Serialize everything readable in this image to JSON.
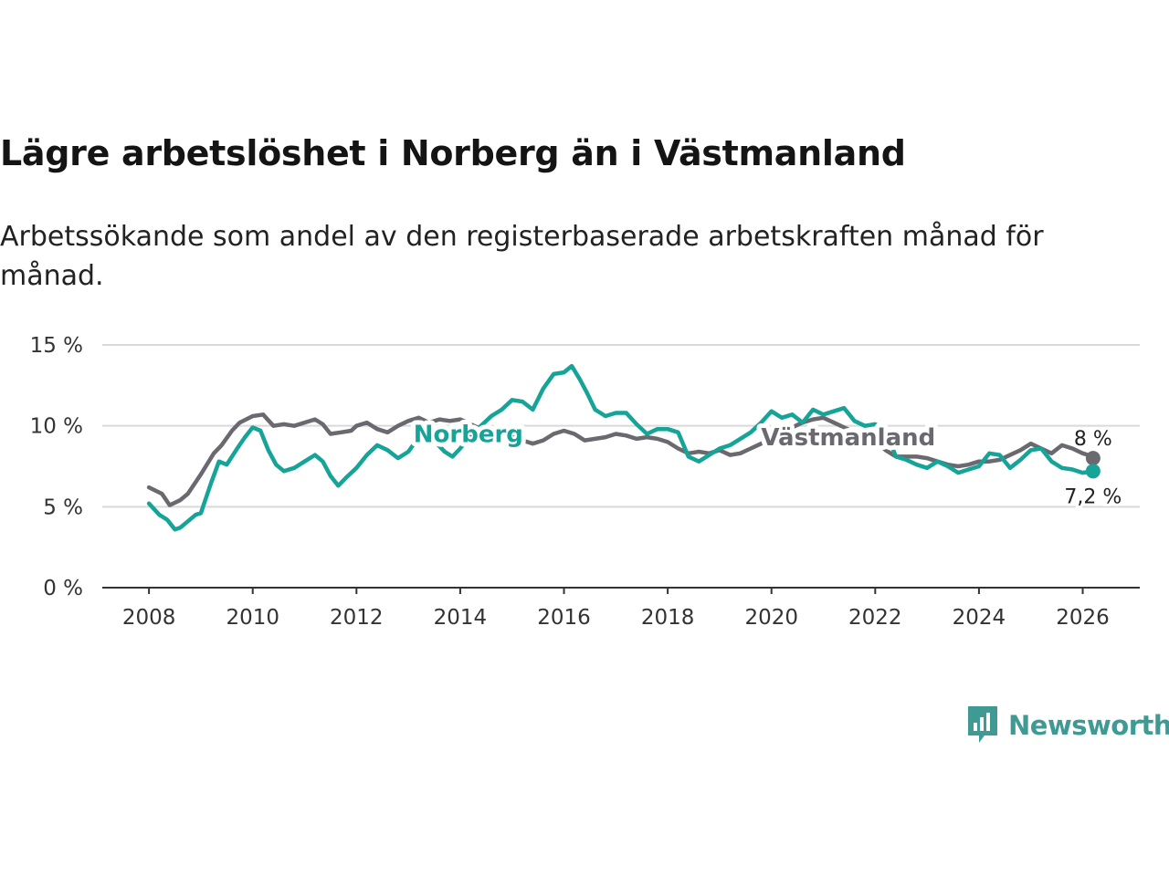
{
  "header": {
    "title": "Lägre arbetslöshet i Norberg än i Västmanland",
    "subtitle": "Arbetssökande som andel av den registerbaserade arbetskraften månad för månad."
  },
  "brand": {
    "name": "Newsworthy",
    "icon": "newsworthy-logo-icon",
    "color": "#3e9a93"
  },
  "chart_data": {
    "type": "line",
    "title": "Lägre arbetslöshet i Norberg än i Västmanland",
    "xlabel": "",
    "ylabel": "",
    "xlim": [
      2007.1,
      2027.1
    ],
    "ylim": [
      0,
      15
    ],
    "xticks": [
      2008,
      2010,
      2012,
      2014,
      2016,
      2018,
      2020,
      2022,
      2024,
      2026
    ],
    "yticks": [
      0,
      5,
      10,
      15
    ],
    "ytick_labels": [
      "0 %",
      "5 %",
      "10 %",
      "15 %"
    ],
    "grid": "horizontal",
    "series": [
      {
        "name": "Västmanland",
        "label": "Västmanland",
        "color": "#6b6970",
        "end_value": 8.0,
        "end_label": "8 %",
        "label_anchor": [
          2019.8,
          9.3
        ],
        "x": [
          2008.0,
          2008.25,
          2008.4,
          2008.6,
          2008.75,
          2009.0,
          2009.25,
          2009.4,
          2009.6,
          2009.75,
          2010.0,
          2010.2,
          2010.4,
          2010.6,
          2010.8,
          2011.0,
          2011.2,
          2011.35,
          2011.5,
          2011.7,
          2011.9,
          2012.0,
          2012.2,
          2012.4,
          2012.6,
          2012.8,
          2013.0,
          2013.2,
          2013.4,
          2013.6,
          2013.8,
          2014.0,
          2014.2,
          2014.4,
          2014.6,
          2014.8,
          2015.0,
          2015.2,
          2015.4,
          2015.6,
          2015.8,
          2016.0,
          2016.2,
          2016.4,
          2016.6,
          2016.8,
          2017.0,
          2017.2,
          2017.4,
          2017.6,
          2017.8,
          2018.0,
          2018.2,
          2018.4,
          2018.6,
          2018.8,
          2019.0,
          2019.2,
          2019.4,
          2019.6,
          2019.8,
          2020.0,
          2020.2,
          2020.4,
          2020.6,
          2020.8,
          2021.0,
          2021.2,
          2021.4,
          2021.6,
          2021.8,
          2022.0,
          2022.2,
          2022.4,
          2022.6,
          2022.8,
          2023.0,
          2023.2,
          2023.4,
          2023.6,
          2023.8,
          2024.0,
          2024.2,
          2024.4,
          2024.6,
          2024.8,
          2025.0,
          2025.2,
          2025.4,
          2025.6,
          2025.8,
          2026.0,
          2026.2
        ],
        "y": [
          6.2,
          5.8,
          5.1,
          5.4,
          5.8,
          7.0,
          8.3,
          8.8,
          9.7,
          10.2,
          10.6,
          10.7,
          10.0,
          10.1,
          10.0,
          10.2,
          10.4,
          10.1,
          9.5,
          9.6,
          9.7,
          10.0,
          10.2,
          9.8,
          9.6,
          10.0,
          10.3,
          10.5,
          10.2,
          10.4,
          10.3,
          10.4,
          10.1,
          9.8,
          9.6,
          9.4,
          9.3,
          9.1,
          8.9,
          9.1,
          9.5,
          9.7,
          9.5,
          9.1,
          9.2,
          9.3,
          9.5,
          9.4,
          9.2,
          9.3,
          9.2,
          9.0,
          8.6,
          8.3,
          8.4,
          8.3,
          8.5,
          8.2,
          8.3,
          8.6,
          8.9,
          9.3,
          9.6,
          9.9,
          10.2,
          10.4,
          10.5,
          10.2,
          9.9,
          9.6,
          9.3,
          9.1,
          8.5,
          8.1,
          8.1,
          8.1,
          8.0,
          7.8,
          7.6,
          7.5,
          7.6,
          7.8,
          7.8,
          7.9,
          8.2,
          8.5,
          8.9,
          8.6,
          8.3,
          8.8,
          8.6,
          8.3,
          8.1
        ]
      },
      {
        "name": "Norberg",
        "label": "Norberg",
        "color": "#16a398",
        "end_value": 7.2,
        "end_label": "7,2 %",
        "label_anchor": [
          2013.1,
          9.5
        ],
        "x": [
          2008.0,
          2008.2,
          2008.35,
          2008.5,
          2008.6,
          2008.75,
          2008.9,
          2009.0,
          2009.2,
          2009.35,
          2009.5,
          2009.7,
          2009.85,
          2010.0,
          2010.15,
          2010.3,
          2010.45,
          2010.6,
          2010.8,
          2011.0,
          2011.2,
          2011.35,
          2011.5,
          2011.65,
          2011.8,
          2012.0,
          2012.2,
          2012.4,
          2012.6,
          2012.8,
          2013.0,
          2013.2,
          2013.4,
          2013.55,
          2013.7,
          2013.85,
          2014.0,
          2014.2,
          2014.4,
          2014.6,
          2014.8,
          2015.0,
          2015.2,
          2015.4,
          2015.6,
          2015.8,
          2016.0,
          2016.15,
          2016.3,
          2016.45,
          2016.6,
          2016.8,
          2017.0,
          2017.2,
          2017.4,
          2017.6,
          2017.8,
          2018.0,
          2018.2,
          2018.4,
          2018.6,
          2018.8,
          2019.0,
          2019.2,
          2019.4,
          2019.6,
          2019.8,
          2020.0,
          2020.2,
          2020.4,
          2020.6,
          2020.8,
          2021.0,
          2021.2,
          2021.4,
          2021.6,
          2021.8,
          2022.0,
          2022.2,
          2022.4,
          2022.6,
          2022.8,
          2023.0,
          2023.2,
          2023.4,
          2023.6,
          2023.8,
          2024.0,
          2024.2,
          2024.4,
          2024.6,
          2024.8,
          2025.0,
          2025.2,
          2025.4,
          2025.6,
          2025.8,
          2026.0,
          2026.2
        ],
        "y": [
          5.2,
          4.5,
          4.2,
          3.6,
          3.7,
          4.1,
          4.5,
          4.6,
          6.5,
          7.8,
          7.6,
          8.6,
          9.3,
          9.9,
          9.7,
          8.5,
          7.6,
          7.2,
          7.4,
          7.8,
          8.2,
          7.8,
          6.9,
          6.3,
          6.8,
          7.4,
          8.2,
          8.8,
          8.5,
          8.0,
          8.4,
          9.3,
          9.5,
          8.9,
          8.4,
          8.1,
          8.6,
          9.4,
          10.0,
          10.6,
          11.0,
          11.6,
          11.5,
          11.0,
          12.3,
          13.2,
          13.3,
          13.7,
          12.9,
          12.0,
          11.0,
          10.6,
          10.8,
          10.8,
          10.1,
          9.5,
          9.8,
          9.8,
          9.6,
          8.1,
          7.8,
          8.2,
          8.6,
          8.8,
          9.2,
          9.6,
          10.2,
          10.9,
          10.5,
          10.7,
          10.2,
          11.0,
          10.7,
          10.9,
          11.1,
          10.3,
          10.0,
          10.1,
          9.7,
          8.1,
          7.9,
          7.6,
          7.4,
          7.8,
          7.5,
          7.1,
          7.3,
          7.5,
          8.3,
          8.2,
          7.4,
          7.9,
          8.5,
          8.6,
          7.8,
          7.4,
          7.3,
          7.1,
          7.2
        ]
      }
    ]
  }
}
